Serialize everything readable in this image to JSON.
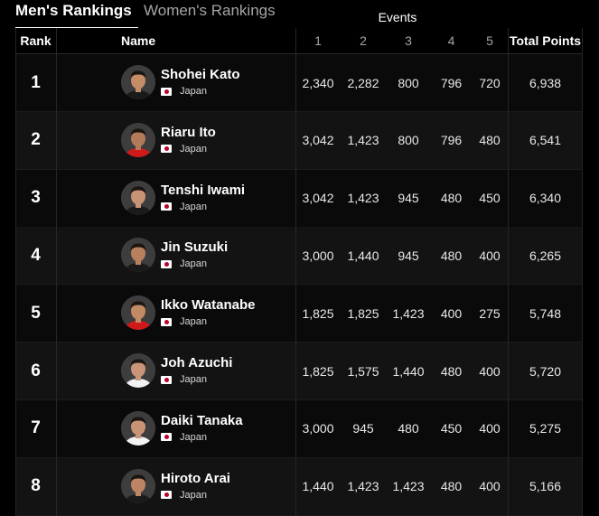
{
  "tabs": [
    {
      "label": "Men's Rankings",
      "active": true
    },
    {
      "label": "Women's Rankings",
      "active": false
    }
  ],
  "events_group_label": "Events",
  "headers": {
    "rank": "Rank",
    "name": "Name",
    "events": [
      "1",
      "2",
      "3",
      "4",
      "5"
    ],
    "total": "Total Points"
  },
  "rows": [
    {
      "rank": "1",
      "name": "Shohei Kato",
      "country": "Japan",
      "events": [
        "2,340",
        "2,282",
        "800",
        "796",
        "720"
      ],
      "total": "6,938",
      "jersey_color": "#1a1a1a"
    },
    {
      "rank": "2",
      "name": "Riaru Ito",
      "country": "Japan",
      "events": [
        "3,042",
        "1,423",
        "800",
        "796",
        "480"
      ],
      "total": "6,541",
      "jersey_color": "#d01a1a"
    },
    {
      "rank": "3",
      "name": "Tenshi Iwami",
      "country": "Japan",
      "events": [
        "3,042",
        "1,423",
        "945",
        "480",
        "450"
      ],
      "total": "6,340",
      "jersey_color": "#1a1a1a"
    },
    {
      "rank": "4",
      "name": "Jin Suzuki",
      "country": "Japan",
      "events": [
        "3,000",
        "1,440",
        "945",
        "480",
        "400"
      ],
      "total": "6,265",
      "jersey_color": "#1a1a1a"
    },
    {
      "rank": "5",
      "name": "Ikko Watanabe",
      "country": "Japan",
      "events": [
        "1,825",
        "1,825",
        "1,423",
        "400",
        "275"
      ],
      "total": "5,748",
      "jersey_color": "#d01a1a"
    },
    {
      "rank": "6",
      "name": "Joh Azuchi",
      "country": "Japan",
      "events": [
        "1,825",
        "1,575",
        "1,440",
        "480",
        "400"
      ],
      "total": "5,720",
      "jersey_color": "#f2f2f2"
    },
    {
      "rank": "7",
      "name": "Daiki Tanaka",
      "country": "Japan",
      "events": [
        "3,000",
        "945",
        "480",
        "450",
        "400"
      ],
      "total": "5,275",
      "jersey_color": "#f2f2f2"
    },
    {
      "rank": "8",
      "name": "Hiroto Arai",
      "country": "Japan",
      "events": [
        "1,440",
        "1,423",
        "1,423",
        "480",
        "400"
      ],
      "total": "5,166",
      "jersey_color": "#1a1a1a"
    }
  ]
}
